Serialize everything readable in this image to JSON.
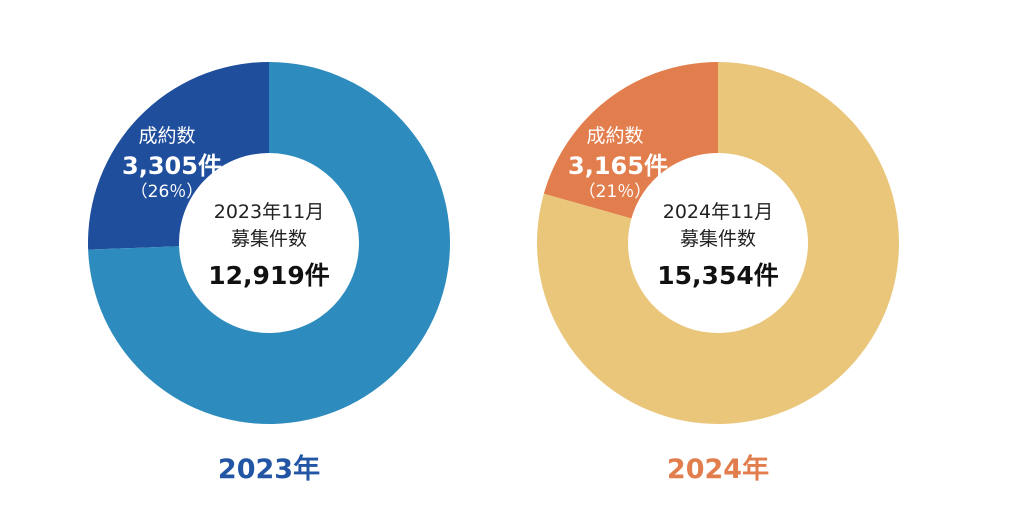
{
  "chart_data": [
    {
      "type": "pie",
      "center_label": [
        "2023年11月",
        "募集件数"
      ],
      "total_label": "12,919件",
      "total": 12919,
      "year_label": "2023年",
      "slices": [
        {
          "name": "成約数",
          "value": 3305,
          "count_label": "3,305件",
          "percent_label": "（26％）",
          "color": "#1f4e9c"
        },
        {
          "value": 9614,
          "color": "#2d8bbd"
        }
      ],
      "colors": {
        "year": "#2255a4"
      }
    },
    {
      "type": "pie",
      "center_label": [
        "2024年11月",
        "募集件数"
      ],
      "total_label": "15,354件",
      "total": 15354,
      "year_label": "2024年",
      "slices": [
        {
          "name": "成約数",
          "value": 3165,
          "count_label": "3,165件",
          "percent_label": "（21％）",
          "color": "#e27e4d"
        },
        {
          "value": 12189,
          "color": "#e9c67a"
        }
      ],
      "colors": {
        "year": "#e27e4d"
      }
    }
  ]
}
